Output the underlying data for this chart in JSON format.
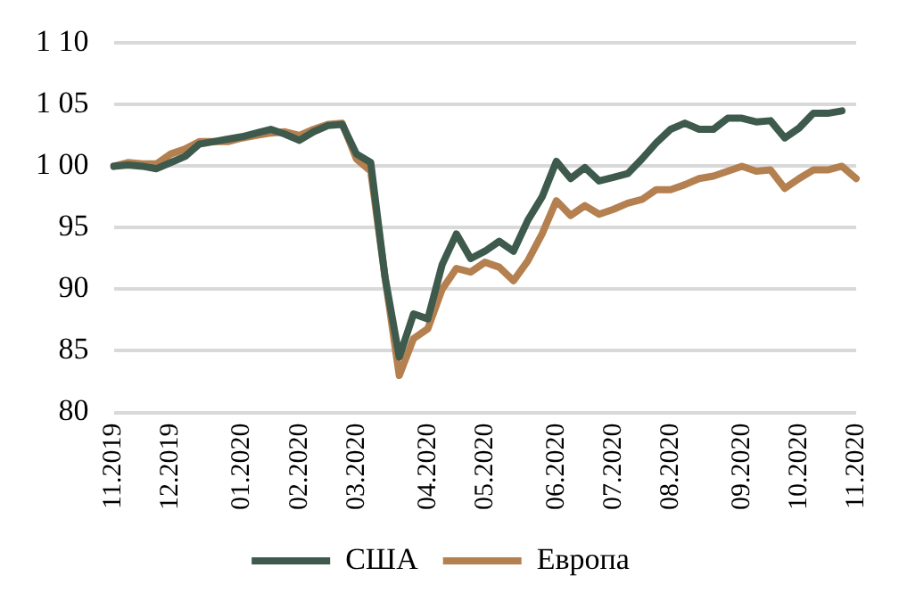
{
  "chart_data": {
    "type": "line",
    "categories": [
      "11.2019",
      null,
      null,
      null,
      "12.2019",
      null,
      null,
      null,
      null,
      "01.2020",
      null,
      null,
      null,
      "02.2020",
      null,
      null,
      null,
      "03.2020",
      null,
      null,
      null,
      null,
      "04.2020",
      null,
      null,
      null,
      "05.2020",
      null,
      null,
      null,
      null,
      "06.2020",
      null,
      null,
      null,
      "07.2020",
      null,
      null,
      null,
      "08.2020",
      null,
      null,
      null,
      null,
      "09.2020",
      null,
      null,
      null,
      "10.2020",
      null,
      null,
      null,
      "11.2020"
    ],
    "series": [
      {
        "name": "США",
        "color": "#3d5a4c",
        "values": [
          100,
          100.1,
          100,
          99.8,
          100.3,
          100.8,
          101.8,
          102,
          102.2,
          102.4,
          102.7,
          103,
          102.6,
          102.1,
          102.8,
          103.3,
          103.4,
          101,
          100.3,
          91,
          84.5,
          88,
          87.6,
          92,
          94.5,
          92.5,
          93.1,
          93.9,
          93.1,
          95.6,
          97.5,
          100.4,
          99,
          99.9,
          98.8,
          99.1,
          99.4,
          100.6,
          101.9,
          103,
          103.5,
          103,
          103,
          103.9,
          103.9,
          103.6,
          103.7,
          102.3,
          103.1,
          104.3,
          104.3,
          104.5,
          null
        ]
      },
      {
        "name": "Европа",
        "color": "#b5804f",
        "values": [
          100,
          100.3,
          100.2,
          100.2,
          101,
          101.4,
          102,
          102,
          102,
          102.3,
          102.5,
          102.7,
          102.8,
          102.5,
          103,
          103.4,
          103.5,
          100.6,
          99.6,
          91,
          83,
          86,
          86.8,
          90,
          91.7,
          91.4,
          92.2,
          91.8,
          90.7,
          92.3,
          94.5,
          97.2,
          96,
          96.8,
          96.1,
          96.5,
          97,
          97.3,
          98.1,
          98.1,
          98.5,
          99,
          99.2,
          99.6,
          100,
          99.6,
          99.7,
          98.2,
          99,
          99.7,
          99.7,
          100,
          99
        ]
      }
    ],
    "ylim": [
      80,
      110
    ],
    "yticks": [
      80,
      85,
      90,
      95,
      {
        "value": 100,
        "label": "1 00"
      },
      {
        "value": 105,
        "label": "1 05"
      },
      {
        "value": 110,
        "label": "1 10"
      }
    ],
    "grid": "y",
    "legend": "bottom",
    "marker": "none",
    "line_style": "solid"
  }
}
